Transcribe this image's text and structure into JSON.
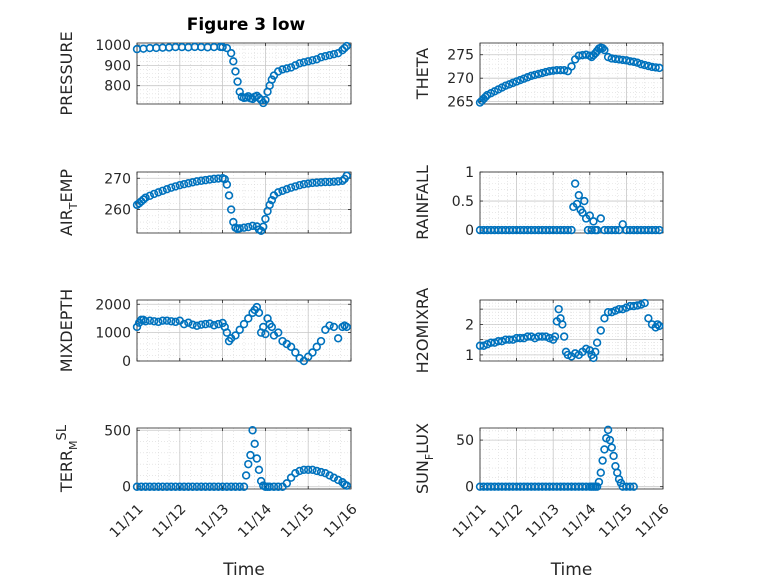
{
  "figure_title": "Figure 3 low",
  "colors": {
    "marker": "#0072BD",
    "grid": "#d9d9d9",
    "axis": "#262626"
  },
  "chart_data": [
    {
      "id": "pressure",
      "type": "scatter",
      "title": "Figure 3 low",
      "ylabel": "PRESSURE",
      "ylabel_sub": "",
      "ylabel_sup": "",
      "xlabel": "",
      "ylim": [
        710,
        1010
      ],
      "yticks": [
        800,
        900,
        1000
      ],
      "ytick_labels": [
        "800",
        "900",
        "1000"
      ],
      "xlim": [
        0,
        5
      ],
      "xticks": [
        0,
        1,
        2,
        3,
        4,
        5
      ],
      "xtick_labels": [
        "",
        "",
        "",
        "",
        "",
        ""
      ],
      "x": [
        0.0,
        0.15,
        0.3,
        0.45,
        0.6,
        0.75,
        0.9,
        1.05,
        1.2,
        1.35,
        1.5,
        1.65,
        1.8,
        1.95,
        2.0,
        2.1,
        2.2,
        2.25,
        2.3,
        2.35,
        2.4,
        2.45,
        2.5,
        2.55,
        2.6,
        2.65,
        2.7,
        2.75,
        2.8,
        2.85,
        2.9,
        2.95,
        3.0,
        3.05,
        3.1,
        3.15,
        3.2,
        3.3,
        3.4,
        3.5,
        3.6,
        3.7,
        3.8,
        3.9,
        4.0,
        4.1,
        4.2,
        4.3,
        4.4,
        4.5,
        4.6,
        4.7,
        4.8,
        4.85,
        4.9
      ],
      "y": [
        980,
        982,
        985,
        986,
        987,
        988,
        990,
        990,
        989,
        991,
        990,
        989,
        990,
        991,
        990,
        985,
        960,
        920,
        870,
        820,
        770,
        745,
        740,
        742,
        748,
        738,
        735,
        745,
        750,
        740,
        730,
        715,
        730,
        770,
        800,
        830,
        850,
        870,
        880,
        885,
        890,
        900,
        910,
        915,
        920,
        925,
        930,
        940,
        945,
        950,
        955,
        960,
        975,
        985,
        995
      ]
    },
    {
      "id": "theta",
      "type": "scatter",
      "title": "",
      "ylabel": "THETA",
      "ylabel_sub": "",
      "ylabel_sup": "",
      "xlabel": "",
      "ylim": [
        264.5,
        277.5
      ],
      "yticks": [
        265,
        270,
        275
      ],
      "ytick_labels": [
        "265",
        "270",
        "275"
      ],
      "xlim": [
        0,
        5
      ],
      "xticks": [
        0,
        1,
        2,
        3,
        4,
        5
      ],
      "xtick_labels": [
        "",
        "",
        "",
        "",
        "",
        ""
      ],
      "x": [
        0.0,
        0.05,
        0.1,
        0.15,
        0.2,
        0.3,
        0.4,
        0.5,
        0.6,
        0.7,
        0.8,
        0.9,
        1.0,
        1.1,
        1.2,
        1.3,
        1.4,
        1.5,
        1.6,
        1.7,
        1.8,
        1.9,
        2.0,
        2.1,
        2.2,
        2.3,
        2.4,
        2.5,
        2.6,
        2.7,
        2.8,
        2.9,
        3.0,
        3.05,
        3.1,
        3.15,
        3.2,
        3.25,
        3.3,
        3.35,
        3.4,
        3.5,
        3.6,
        3.7,
        3.8,
        3.9,
        4.0,
        4.1,
        4.2,
        4.3,
        4.4,
        4.5,
        4.6,
        4.7,
        4.8,
        4.9
      ],
      "y": [
        264.8,
        265.2,
        265.6,
        266.0,
        266.4,
        266.8,
        267.2,
        267.6,
        268.0,
        268.4,
        268.7,
        269.0,
        269.3,
        269.6,
        269.9,
        270.2,
        270.5,
        270.7,
        270.9,
        271.1,
        271.3,
        271.5,
        271.6,
        271.7,
        271.7,
        271.7,
        271.5,
        272.5,
        274.0,
        274.8,
        274.9,
        275.0,
        274.8,
        274.5,
        274.9,
        275.3,
        275.8,
        276.3,
        276.5,
        276.4,
        276.0,
        274.5,
        274.2,
        274.1,
        274.0,
        273.9,
        273.8,
        273.6,
        273.5,
        273.3,
        273.0,
        272.8,
        272.6,
        272.4,
        272.3,
        272.2
      ]
    },
    {
      "id": "air_temp",
      "type": "scatter",
      "title": "",
      "ylabel": "AIR",
      "ylabel_sub": "T",
      "ylabel_sup": "",
      "ylabel_suffix": "EMP",
      "xlabel": "",
      "ylim": [
        252.5,
        272
      ],
      "yticks": [
        260,
        270
      ],
      "ytick_labels": [
        "260",
        "270"
      ],
      "xlim": [
        0,
        5
      ],
      "xticks": [
        0,
        1,
        2,
        3,
        4,
        5
      ],
      "xtick_labels": [
        "",
        "",
        "",
        "",
        "",
        ""
      ],
      "x": [
        0.0,
        0.05,
        0.1,
        0.15,
        0.2,
        0.3,
        0.4,
        0.5,
        0.6,
        0.7,
        0.8,
        0.9,
        1.0,
        1.1,
        1.2,
        1.3,
        1.4,
        1.5,
        1.6,
        1.7,
        1.8,
        1.9,
        2.0,
        2.05,
        2.1,
        2.15,
        2.2,
        2.25,
        2.3,
        2.35,
        2.4,
        2.5,
        2.6,
        2.7,
        2.8,
        2.85,
        2.9,
        2.95,
        3.0,
        3.05,
        3.1,
        3.15,
        3.2,
        3.3,
        3.4,
        3.5,
        3.6,
        3.7,
        3.8,
        3.9,
        4.0,
        4.1,
        4.2,
        4.3,
        4.4,
        4.5,
        4.6,
        4.7,
        4.8,
        4.85,
        4.9
      ],
      "y": [
        261.5,
        262.0,
        262.6,
        263.2,
        263.8,
        264.4,
        265.0,
        265.5,
        266.0,
        266.5,
        267.0,
        267.4,
        267.8,
        268.1,
        268.4,
        268.7,
        269.0,
        269.2,
        269.4,
        269.6,
        269.8,
        269.9,
        270.0,
        269.7,
        268.0,
        264.5,
        260.0,
        256.0,
        254.2,
        253.8,
        254.0,
        254.2,
        254.4,
        254.8,
        254.6,
        253.6,
        253.2,
        254.5,
        257.0,
        259.5,
        261.5,
        263.0,
        264.5,
        265.5,
        266.0,
        266.5,
        267.0,
        267.4,
        267.8,
        268.1,
        268.3,
        268.5,
        268.6,
        268.7,
        268.8,
        268.8,
        268.9,
        269.0,
        269.2,
        269.8,
        270.8
      ]
    },
    {
      "id": "rainfall",
      "type": "scatter",
      "title": "",
      "ylabel": "RAINFALL",
      "ylabel_sub": "",
      "ylabel_sup": "",
      "xlabel": "",
      "ylim": [
        -0.05,
        1.0
      ],
      "yticks": [
        0,
        0.5,
        1
      ],
      "ytick_labels": [
        "0",
        "0.5",
        "1"
      ],
      "xlim": [
        0,
        5
      ],
      "xticks": [
        0,
        1,
        2,
        3,
        4,
        5
      ],
      "xtick_labels": [
        "",
        "",
        "",
        "",
        "",
        ""
      ],
      "x": [
        0.0,
        0.1,
        0.2,
        0.3,
        0.4,
        0.5,
        0.6,
        0.7,
        0.8,
        0.9,
        1.0,
        1.1,
        1.2,
        1.3,
        1.4,
        1.5,
        1.6,
        1.7,
        1.8,
        1.9,
        2.0,
        2.1,
        2.2,
        2.3,
        2.4,
        2.5,
        2.55,
        2.6,
        2.65,
        2.7,
        2.75,
        2.8,
        2.85,
        2.9,
        2.95,
        3.0,
        3.05,
        3.1,
        3.15,
        3.2,
        3.3,
        3.4,
        3.5,
        3.6,
        3.7,
        3.8,
        3.9,
        4.0,
        4.1,
        4.2,
        4.3,
        4.4,
        4.5,
        4.6,
        4.7,
        4.8,
        4.9
      ],
      "y": [
        0,
        0,
        0,
        0,
        0,
        0,
        0,
        0,
        0,
        0,
        0,
        0,
        0,
        0,
        0,
        0,
        0,
        0,
        0,
        0,
        0,
        0,
        0,
        0,
        0,
        0,
        0.4,
        0.8,
        0.45,
        0.6,
        0.35,
        0.3,
        0.5,
        0.2,
        0.0,
        0.25,
        0.0,
        0.15,
        0.0,
        0.0,
        0.2,
        0.0,
        0.0,
        0.0,
        0.0,
        0.0,
        0.1,
        0.0,
        0.0,
        0.0,
        0.0,
        0.0,
        0.0,
        0.0,
        0.0,
        0.0,
        0.0
      ]
    },
    {
      "id": "mixdepth",
      "type": "scatter",
      "title": "",
      "ylabel": "MIXDEPTH",
      "ylabel_sub": "",
      "ylabel_sup": "",
      "xlabel": "",
      "ylim": [
        0,
        2150
      ],
      "yticks": [
        0,
        1000,
        2000
      ],
      "ytick_labels": [
        "0",
        "1000",
        "2000"
      ],
      "xlim": [
        0,
        5
      ],
      "xticks": [
        0,
        1,
        2,
        3,
        4,
        5
      ],
      "xtick_labels": [
        "",
        "",
        "",
        "",
        "",
        ""
      ],
      "x": [
        0.0,
        0.05,
        0.1,
        0.15,
        0.2,
        0.3,
        0.4,
        0.5,
        0.6,
        0.7,
        0.8,
        0.9,
        1.0,
        1.1,
        1.2,
        1.3,
        1.4,
        1.5,
        1.6,
        1.7,
        1.8,
        1.9,
        2.0,
        2.05,
        2.1,
        2.15,
        2.2,
        2.3,
        2.4,
        2.5,
        2.6,
        2.7,
        2.75,
        2.8,
        2.85,
        2.9,
        2.95,
        3.0,
        3.05,
        3.1,
        3.15,
        3.2,
        3.3,
        3.4,
        3.5,
        3.6,
        3.7,
        3.8,
        3.9,
        4.0,
        4.1,
        4.2,
        4.3,
        4.4,
        4.5,
        4.6,
        4.7,
        4.8,
        4.85,
        4.9
      ],
      "y": [
        1200,
        1350,
        1450,
        1450,
        1400,
        1420,
        1400,
        1380,
        1420,
        1420,
        1400,
        1380,
        1420,
        1300,
        1350,
        1280,
        1240,
        1280,
        1300,
        1320,
        1260,
        1300,
        1340,
        1200,
        1000,
        700,
        800,
        900,
        1100,
        1300,
        1500,
        1700,
        1800,
        1900,
        1700,
        1000,
        1200,
        950,
        1500,
        1300,
        1200,
        900,
        1000,
        700,
        600,
        500,
        300,
        100,
        0,
        150,
        300,
        500,
        700,
        1100,
        1250,
        1200,
        800,
        1200,
        1250,
        1200
      ]
    },
    {
      "id": "h2omixra",
      "type": "scatter",
      "title": "",
      "ylabel": "H2OMIXRA",
      "ylabel_sub": "",
      "ylabel_sup": "",
      "xlabel": "",
      "ylim": [
        0.8,
        2.8
      ],
      "yticks": [
        1,
        1.5,
        2,
        2.5
      ],
      "ytick_labels": [
        "1",
        "",
        "2",
        ""
      ],
      "xlim": [
        0,
        5
      ],
      "xticks": [
        0,
        1,
        2,
        3,
        4,
        5
      ],
      "xtick_labels": [
        "",
        "",
        "",
        "",
        "",
        ""
      ],
      "x": [
        0.0,
        0.1,
        0.2,
        0.3,
        0.4,
        0.5,
        0.6,
        0.7,
        0.8,
        0.9,
        1.0,
        1.1,
        1.2,
        1.3,
        1.4,
        1.5,
        1.6,
        1.7,
        1.8,
        1.9,
        2.0,
        2.05,
        2.1,
        2.15,
        2.2,
        2.25,
        2.3,
        2.35,
        2.4,
        2.5,
        2.6,
        2.7,
        2.8,
        2.9,
        3.0,
        3.05,
        3.1,
        3.15,
        3.2,
        3.3,
        3.4,
        3.5,
        3.6,
        3.7,
        3.8,
        3.9,
        4.0,
        4.1,
        4.2,
        4.3,
        4.4,
        4.5,
        4.6,
        4.7,
        4.8,
        4.85,
        4.9
      ],
      "y": [
        1.3,
        1.3,
        1.35,
        1.4,
        1.4,
        1.45,
        1.45,
        1.5,
        1.5,
        1.5,
        1.55,
        1.55,
        1.55,
        1.6,
        1.6,
        1.55,
        1.6,
        1.6,
        1.6,
        1.55,
        1.5,
        1.6,
        2.1,
        2.5,
        2.2,
        2.0,
        1.6,
        1.1,
        1.0,
        0.95,
        1.05,
        1.0,
        1.1,
        1.2,
        1.15,
        1.0,
        0.9,
        1.1,
        1.4,
        1.8,
        2.2,
        2.4,
        2.4,
        2.45,
        2.5,
        2.5,
        2.55,
        2.6,
        2.6,
        2.62,
        2.65,
        2.7,
        2.2,
        2.0,
        1.9,
        2.0,
        1.95
      ]
    },
    {
      "id": "terr_msl",
      "type": "scatter",
      "title": "",
      "ylabel": "TERR",
      "ylabel_sub": "M",
      "ylabel_sup": "SL",
      "ylabel_suffix": "",
      "xlabel": "Time",
      "ylim": [
        -20,
        520
      ],
      "yticks": [
        0,
        500
      ],
      "ytick_labels": [
        "0",
        "500"
      ],
      "xlim": [
        0,
        5
      ],
      "xticks": [
        0,
        1,
        2,
        3,
        4,
        5
      ],
      "xtick_labels": [
        "11/11",
        "11/12",
        "11/13",
        "11/14",
        "11/15",
        "11/16"
      ],
      "x": [
        0.0,
        0.1,
        0.2,
        0.3,
        0.4,
        0.5,
        0.6,
        0.7,
        0.8,
        0.9,
        1.0,
        1.1,
        1.2,
        1.3,
        1.4,
        1.5,
        1.6,
        1.7,
        1.8,
        1.9,
        2.0,
        2.1,
        2.2,
        2.3,
        2.4,
        2.5,
        2.55,
        2.6,
        2.65,
        2.7,
        2.75,
        2.8,
        2.85,
        2.9,
        2.95,
        3.0,
        3.05,
        3.1,
        3.2,
        3.3,
        3.4,
        3.5,
        3.6,
        3.7,
        3.8,
        3.9,
        4.0,
        4.1,
        4.2,
        4.3,
        4.4,
        4.5,
        4.6,
        4.7,
        4.8,
        4.85,
        4.9
      ],
      "y": [
        0,
        0,
        0,
        0,
        0,
        0,
        0,
        0,
        0,
        0,
        0,
        0,
        0,
        0,
        0,
        0,
        0,
        0,
        0,
        0,
        0,
        0,
        0,
        0,
        0,
        0,
        100,
        200,
        280,
        500,
        380,
        250,
        150,
        50,
        10,
        0,
        0,
        0,
        0,
        0,
        0,
        30,
        80,
        120,
        140,
        150,
        150,
        150,
        140,
        130,
        120,
        100,
        80,
        60,
        40,
        20,
        10
      ]
    },
    {
      "id": "sun_flux",
      "type": "scatter",
      "title": "",
      "ylabel": "SUN",
      "ylabel_sub": "F",
      "ylabel_sup": "",
      "ylabel_suffix": "LUX",
      "xlabel": "Time",
      "ylim": [
        -2.5,
        63
      ],
      "yticks": [
        0,
        50
      ],
      "ytick_labels": [
        "0",
        "50"
      ],
      "xlim": [
        0,
        5
      ],
      "xticks": [
        0,
        1,
        2,
        3,
        4,
        5
      ],
      "xtick_labels": [
        "11/11",
        "11/12",
        "11/13",
        "11/14",
        "11/15",
        "11/16"
      ],
      "x": [
        0.0,
        0.1,
        0.2,
        0.3,
        0.4,
        0.5,
        0.6,
        0.7,
        0.8,
        0.9,
        1.0,
        1.1,
        1.2,
        1.3,
        1.4,
        1.5,
        1.6,
        1.7,
        1.8,
        1.9,
        2.0,
        2.1,
        2.2,
        2.3,
        2.4,
        2.5,
        2.6,
        2.7,
        2.8,
        2.9,
        3.0,
        3.05,
        3.1,
        3.15,
        3.2,
        3.25,
        3.3,
        3.35,
        3.4,
        3.45,
        3.5,
        3.55,
        3.6,
        3.65,
        3.7,
        3.75,
        3.8,
        3.85,
        3.9,
        4.0,
        4.1,
        4.2
      ],
      "y": [
        0,
        0,
        0,
        0,
        0,
        0,
        0,
        0,
        0,
        0,
        0,
        0,
        0,
        0,
        0,
        0,
        0,
        0,
        0,
        0,
        0,
        0,
        0,
        0,
        0,
        0,
        0,
        0,
        0,
        0,
        0,
        0,
        0,
        0,
        0,
        5,
        15,
        28,
        40,
        52,
        61,
        50,
        42,
        33,
        22,
        15,
        8,
        4,
        0,
        0,
        0,
        0
      ]
    }
  ]
}
